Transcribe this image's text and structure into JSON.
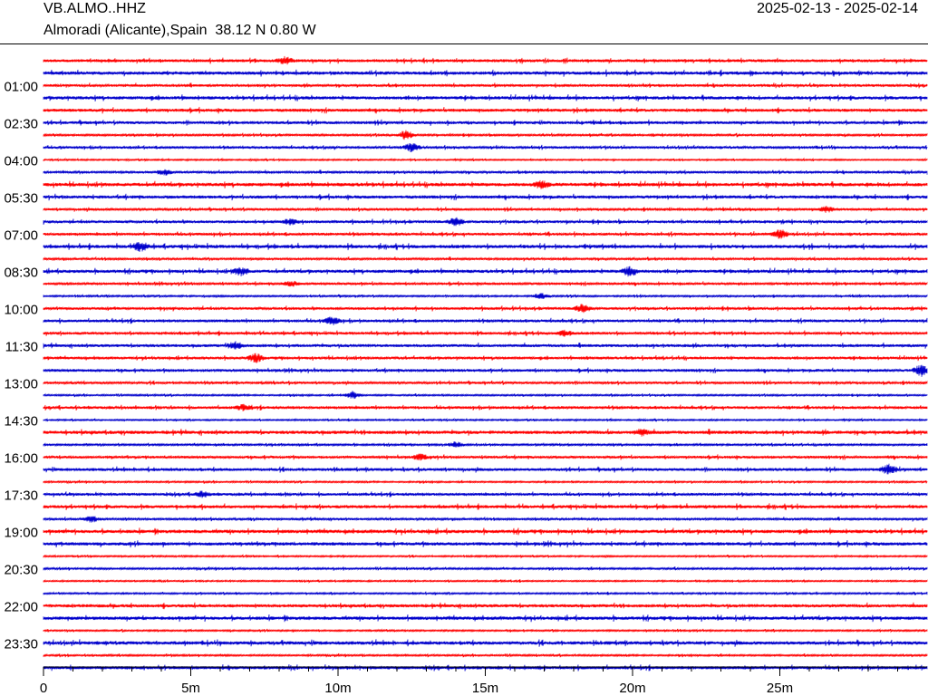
{
  "header": {
    "station": "VB.ALMO..HHZ",
    "location": "Almoradi (Alicante),Spain  38.12 N 0.80 W",
    "date_range": "2025-02-13 - 2025-02-14"
  },
  "colors": {
    "trace_a": "#ff0000",
    "trace_b": "#0000cc",
    "axis": "#000000"
  },
  "chart_data": {
    "type": "line",
    "title": "VB.ALMO..HHZ",
    "subtitle": "Almoradi (Alicante),Spain  38.12 N 0.80 W",
    "xlabel": "",
    "ylabel": "",
    "x_unit": "minutes",
    "xlim": [
      0,
      30
    ],
    "x_ticks": [
      {
        "value": 0,
        "label": "0"
      },
      {
        "value": 5,
        "label": "5m"
      },
      {
        "value": 10,
        "label": "10m"
      },
      {
        "value": 15,
        "label": "15m"
      },
      {
        "value": 20,
        "label": "20m"
      },
      {
        "value": 25,
        "label": "25m"
      }
    ],
    "x_minor_tick_step": 1,
    "trace_count": 50,
    "trace_duration_minutes": 30,
    "first_trace_start": "00:00",
    "time_labels": [
      {
        "trace": 2,
        "label": "01:00"
      },
      {
        "trace": 5,
        "label": "02:30"
      },
      {
        "trace": 8,
        "label": "04:00"
      },
      {
        "trace": 11,
        "label": "05:30"
      },
      {
        "trace": 14,
        "label": "07:00"
      },
      {
        "trace": 17,
        "label": "08:30"
      },
      {
        "trace": 20,
        "label": "10:00"
      },
      {
        "trace": 23,
        "label": "11:30"
      },
      {
        "trace": 26,
        "label": "13:00"
      },
      {
        "trace": 29,
        "label": "14:30"
      },
      {
        "trace": 32,
        "label": "16:00"
      },
      {
        "trace": 35,
        "label": "17:30"
      },
      {
        "trace": 38,
        "label": "19:00"
      },
      {
        "trace": 41,
        "label": "20:30"
      },
      {
        "trace": 44,
        "label": "22:00"
      },
      {
        "trace": 47,
        "label": "23:30"
      }
    ],
    "color_cycle": [
      "red",
      "blue"
    ],
    "grid": false,
    "legend": "none",
    "events": [
      {
        "trace": 0,
        "minute": 8.2,
        "amp": 4
      },
      {
        "trace": 6,
        "minute": 12.3,
        "amp": 5
      },
      {
        "trace": 7,
        "minute": 12.5,
        "amp": 5
      },
      {
        "trace": 9,
        "minute": 4.1,
        "amp": 3
      },
      {
        "trace": 10,
        "minute": 16.9,
        "amp": 4
      },
      {
        "trace": 12,
        "minute": 26.6,
        "amp": 3
      },
      {
        "trace": 13,
        "minute": 8.4,
        "amp": 3
      },
      {
        "trace": 13,
        "minute": 14.0,
        "amp": 4
      },
      {
        "trace": 14,
        "minute": 25.0,
        "amp": 5
      },
      {
        "trace": 15,
        "minute": 3.3,
        "amp": 5
      },
      {
        "trace": 17,
        "minute": 19.9,
        "amp": 5
      },
      {
        "trace": 17,
        "minute": 6.7,
        "amp": 4
      },
      {
        "trace": 18,
        "minute": 8.4,
        "amp": 3
      },
      {
        "trace": 19,
        "minute": 16.9,
        "amp": 3
      },
      {
        "trace": 20,
        "minute": 18.3,
        "amp": 4
      },
      {
        "trace": 21,
        "minute": 9.8,
        "amp": 4
      },
      {
        "trace": 22,
        "minute": 17.7,
        "amp": 3
      },
      {
        "trace": 23,
        "minute": 6.5,
        "amp": 4
      },
      {
        "trace": 24,
        "minute": 7.2,
        "amp": 5
      },
      {
        "trace": 25,
        "minute": 29.8,
        "amp": 6
      },
      {
        "trace": 27,
        "minute": 10.5,
        "amp": 4
      },
      {
        "trace": 28,
        "minute": 6.8,
        "amp": 3
      },
      {
        "trace": 30,
        "minute": 20.3,
        "amp": 3
      },
      {
        "trace": 31,
        "minute": 14.0,
        "amp": 3
      },
      {
        "trace": 32,
        "minute": 12.8,
        "amp": 3
      },
      {
        "trace": 33,
        "minute": 28.7,
        "amp": 5
      },
      {
        "trace": 35,
        "minute": 5.4,
        "amp": 3
      },
      {
        "trace": 37,
        "minute": 1.6,
        "amp": 4
      }
    ]
  }
}
